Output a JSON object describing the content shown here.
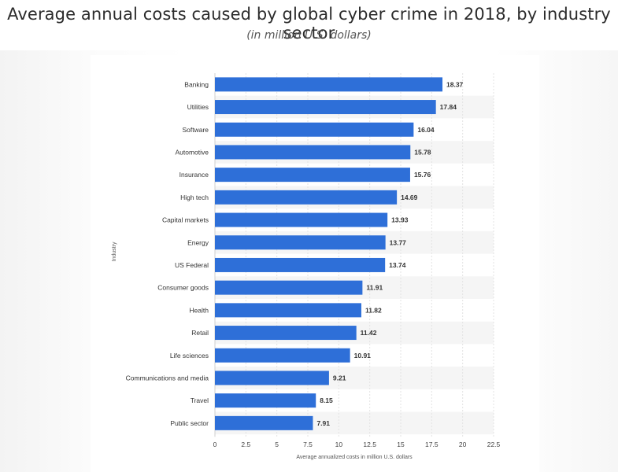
{
  "title": "Average annual costs caused by global cyber crime in 2018, by industry sector",
  "subtitle": "(in million U.S. dollars)",
  "chart_data": {
    "type": "bar",
    "orientation": "horizontal",
    "categories": [
      "Banking",
      "Utilities",
      "Software",
      "Automotive",
      "Insurance",
      "High tech",
      "Capital markets",
      "Energy",
      "US Federal",
      "Consumer goods",
      "Health",
      "Retail",
      "Life sciences",
      "Communications and media",
      "Travel",
      "Public sector"
    ],
    "values": [
      18.37,
      17.84,
      16.04,
      15.78,
      15.76,
      14.69,
      13.93,
      13.77,
      13.74,
      11.91,
      11.82,
      11.42,
      10.91,
      9.21,
      8.15,
      7.91
    ],
    "value_labels": [
      "18.37",
      "17.84",
      "16.04",
      "15.78",
      "15.76",
      "14.69",
      "13.93",
      "13.77",
      "13.74",
      "11.91",
      "11.82",
      "11.42",
      "10.91",
      "9.21",
      "8.15",
      "7.91"
    ],
    "xlabel": "Average annualized costs in million U.S. dollars",
    "ylabel": "Industry",
    "xlim": [
      0,
      22.5
    ],
    "xticks": [
      "0",
      "2.5",
      "5",
      "7.5",
      "10",
      "12.5",
      "15",
      "17.5",
      "20",
      "22.5"
    ],
    "bar_color": "#2e6fd8",
    "grid": true,
    "legend": false
  }
}
